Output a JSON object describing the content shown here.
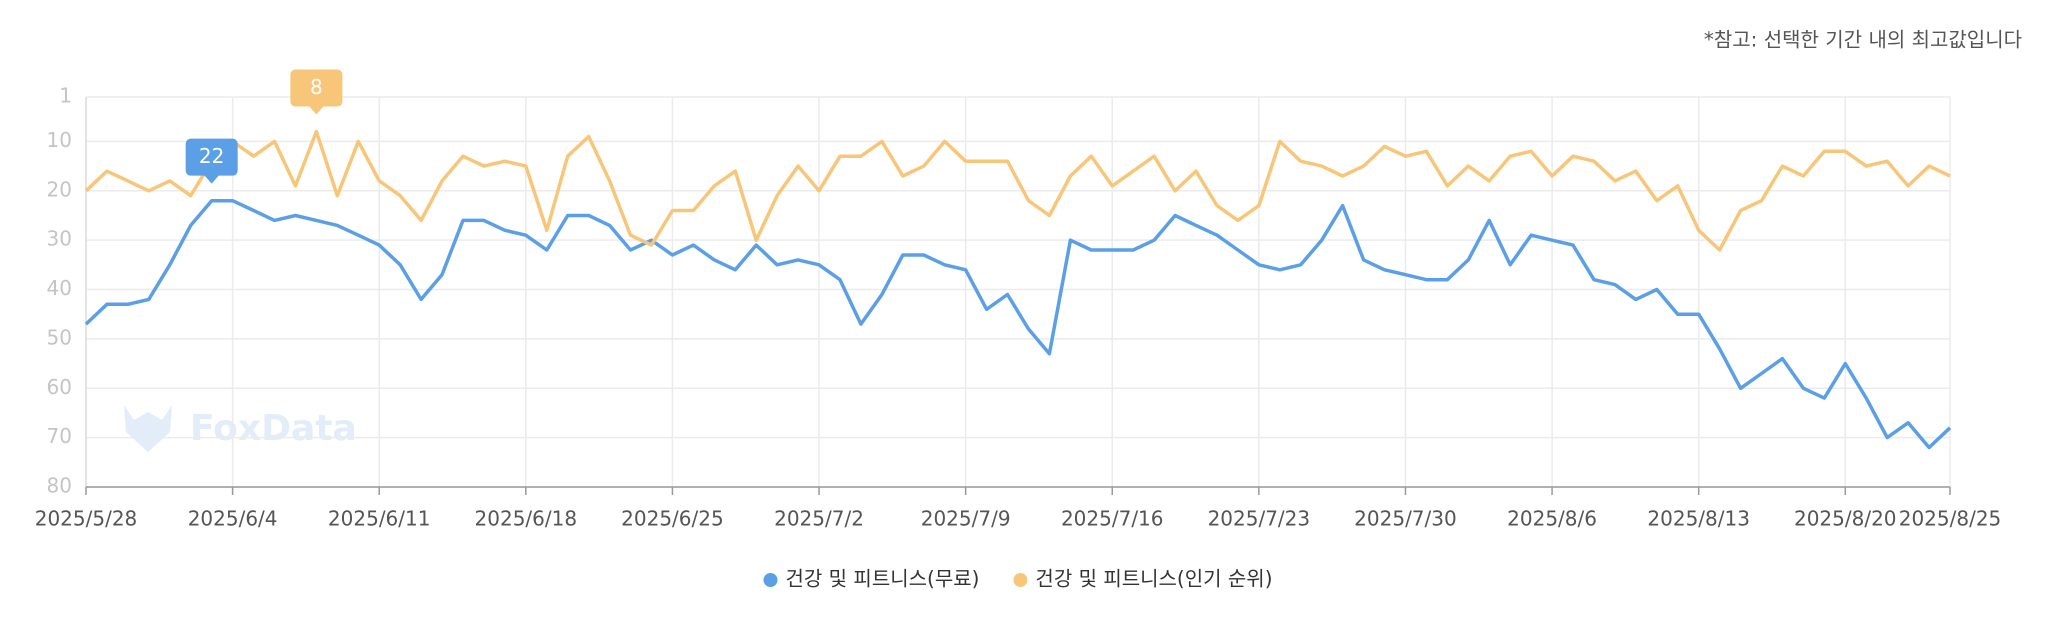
{
  "chart_data": {
    "type": "line",
    "note": "*참고: 선택한 기간 내의 최고값입니다",
    "watermark": "FoxData",
    "categories": [
      "2025/5/28",
      null,
      null,
      null,
      null,
      null,
      null,
      "2025/6/4",
      null,
      null,
      null,
      null,
      null,
      null,
      "2025/6/11",
      null,
      null,
      null,
      null,
      null,
      null,
      "2025/6/18",
      null,
      null,
      null,
      null,
      null,
      null,
      "2025/6/25",
      null,
      null,
      null,
      null,
      null,
      null,
      "2025/7/2",
      null,
      null,
      null,
      null,
      null,
      null,
      "2025/7/9",
      null,
      null,
      null,
      null,
      null,
      null,
      "2025/7/16",
      null,
      null,
      null,
      null,
      null,
      null,
      "2025/7/23",
      null,
      null,
      null,
      null,
      null,
      null,
      "2025/7/30",
      null,
      null,
      null,
      null,
      null,
      null,
      "2025/8/6",
      null,
      null,
      null,
      null,
      null,
      null,
      "2025/8/13",
      null,
      null,
      null,
      null,
      null,
      null,
      "2025/8/20",
      null,
      null,
      null,
      null,
      "2025/8/25"
    ],
    "series": [
      {
        "name": "건강 및 피트니스(무료)",
        "color": "#5b9fe6",
        "values": [
          47,
          43,
          43,
          42,
          35,
          27,
          22,
          22,
          24,
          26,
          25,
          26,
          27,
          29,
          31,
          35,
          42,
          37,
          26,
          26,
          28,
          29,
          32,
          25,
          25,
          27,
          32,
          30,
          33,
          31,
          34,
          36,
          31,
          35,
          34,
          35,
          38,
          47,
          41,
          33,
          33,
          35,
          36,
          44,
          41,
          48,
          53,
          30,
          32,
          32,
          32,
          30,
          25,
          27,
          29,
          32,
          35,
          36,
          35,
          30,
          23,
          34,
          36,
          37,
          38,
          38,
          34,
          26,
          35,
          29,
          30,
          31,
          38,
          39,
          42,
          40,
          45,
          45,
          52,
          60,
          57,
          54,
          60,
          62,
          55,
          62,
          70,
          67,
          72,
          68
        ]
      },
      {
        "name": "건강 및 피트니스(인기 순위)",
        "color": "#f7c679",
        "values": [
          20,
          16,
          18,
          20,
          18,
          21,
          14,
          10,
          13,
          10,
          19,
          8,
          21,
          10,
          18,
          21,
          26,
          18,
          13,
          15,
          14,
          15,
          28,
          13,
          9,
          18,
          29,
          31,
          24,
          24,
          19,
          16,
          30,
          21,
          15,
          20,
          13,
          13,
          10,
          17,
          15,
          10,
          14,
          14,
          14,
          22,
          25,
          17,
          13,
          19,
          16,
          13,
          20,
          16,
          23,
          26,
          23,
          10,
          14,
          15,
          17,
          15,
          11,
          13,
          12,
          19,
          15,
          18,
          13,
          12,
          17,
          13,
          14,
          18,
          16,
          22,
          19,
          28,
          32,
          24,
          22,
          15,
          17,
          12,
          12,
          15,
          14,
          19,
          15,
          17
        ]
      }
    ],
    "ylim": [
      80,
      1
    ],
    "yticks": [
      1,
      10,
      20,
      30,
      40,
      50,
      60,
      70,
      80
    ],
    "grid": true
  }
}
